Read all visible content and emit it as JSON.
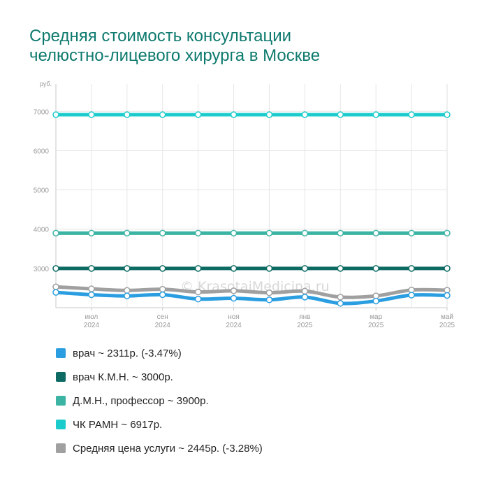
{
  "title_lines": [
    "Средняя стоимость консультации",
    "челюстно-лицевого хирурга в Москве"
  ],
  "watermark": "© KrasotaiMedicina.ru",
  "chart_data": {
    "type": "line",
    "title": "Средняя стоимость консультации челюстно-лицевого хирурга в Москве",
    "y_unit": "руб.",
    "ylim": [
      2000,
      7700
    ],
    "yticks": [
      3000,
      4000,
      5000,
      6000,
      7000
    ],
    "x_tick_labels": [
      {
        "month": "июл",
        "year": "2024"
      },
      {
        "month": "сен",
        "year": "2024"
      },
      {
        "month": "ноя",
        "year": "2024"
      },
      {
        "month": "янв",
        "year": "2025"
      },
      {
        "month": "мар",
        "year": "2025"
      },
      {
        "month": "май",
        "year": "2025"
      }
    ],
    "grid": true,
    "legend_position": "bottom",
    "series": [
      {
        "name": "врач ~ 2311р. (-3.47%)",
        "color": "#2a9ee0",
        "values": [
          2390,
          2330,
          2300,
          2330,
          2220,
          2240,
          2200,
          2270,
          2110,
          2170,
          2320,
          2311
        ]
      },
      {
        "name": "врач К.М.Н. ~ 3000р.",
        "color": "#0d6b63",
        "values": [
          3000,
          3000,
          3000,
          3000,
          3000,
          3000,
          3000,
          3000,
          3000,
          3000,
          3000,
          3000
        ]
      },
      {
        "name": "Д.М.Н., профессор ~ 3900р.",
        "color": "#3cb4a4",
        "values": [
          3900,
          3900,
          3900,
          3900,
          3900,
          3900,
          3900,
          3900,
          3900,
          3900,
          3900,
          3900
        ]
      },
      {
        "name": "ЧК РАМН ~ 6917р.",
        "color": "#1ccccc",
        "values": [
          6917,
          6917,
          6917,
          6917,
          6917,
          6917,
          6917,
          6917,
          6917,
          6917,
          6917,
          6917
        ]
      },
      {
        "name": "Средняя цена услуги ~ 2445р. (-3.28%)",
        "color": "#a0a0a0",
        "values": [
          2530,
          2480,
          2440,
          2470,
          2400,
          2430,
          2380,
          2420,
          2270,
          2300,
          2450,
          2445
        ]
      }
    ]
  }
}
